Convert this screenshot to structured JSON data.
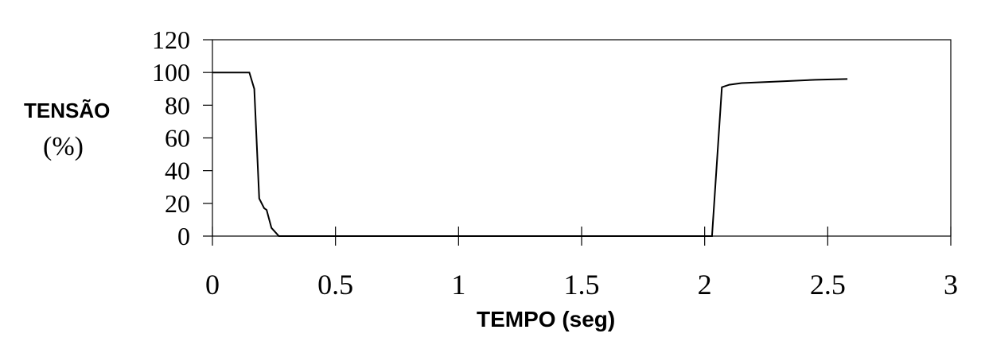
{
  "chart_data": {
    "type": "line",
    "ylabel_line1": "TENSÃO",
    "ylabel_line2": "(%)",
    "xlabel": "TEMPO (seg)",
    "xlim": [
      0,
      3
    ],
    "ylim": [
      0,
      120
    ],
    "x_ticks": [
      "0",
      "0.5",
      "1",
      "1.5",
      "2",
      "2.5",
      "3"
    ],
    "y_ticks": [
      "0",
      "20",
      "40",
      "60",
      "80",
      "100",
      "120"
    ],
    "grid": false,
    "series": [
      {
        "x": [
          0,
          0.15,
          0.17,
          0.19,
          0.21,
          0.22,
          0.24,
          0.27,
          2.03,
          2.07,
          2.1,
          2.15,
          2.3,
          2.45,
          2.58
        ],
        "y": [
          100,
          100,
          90,
          23,
          17,
          16,
          5,
          0,
          0,
          91,
          92.5,
          93.5,
          94.5,
          95.5,
          96
        ]
      }
    ]
  }
}
